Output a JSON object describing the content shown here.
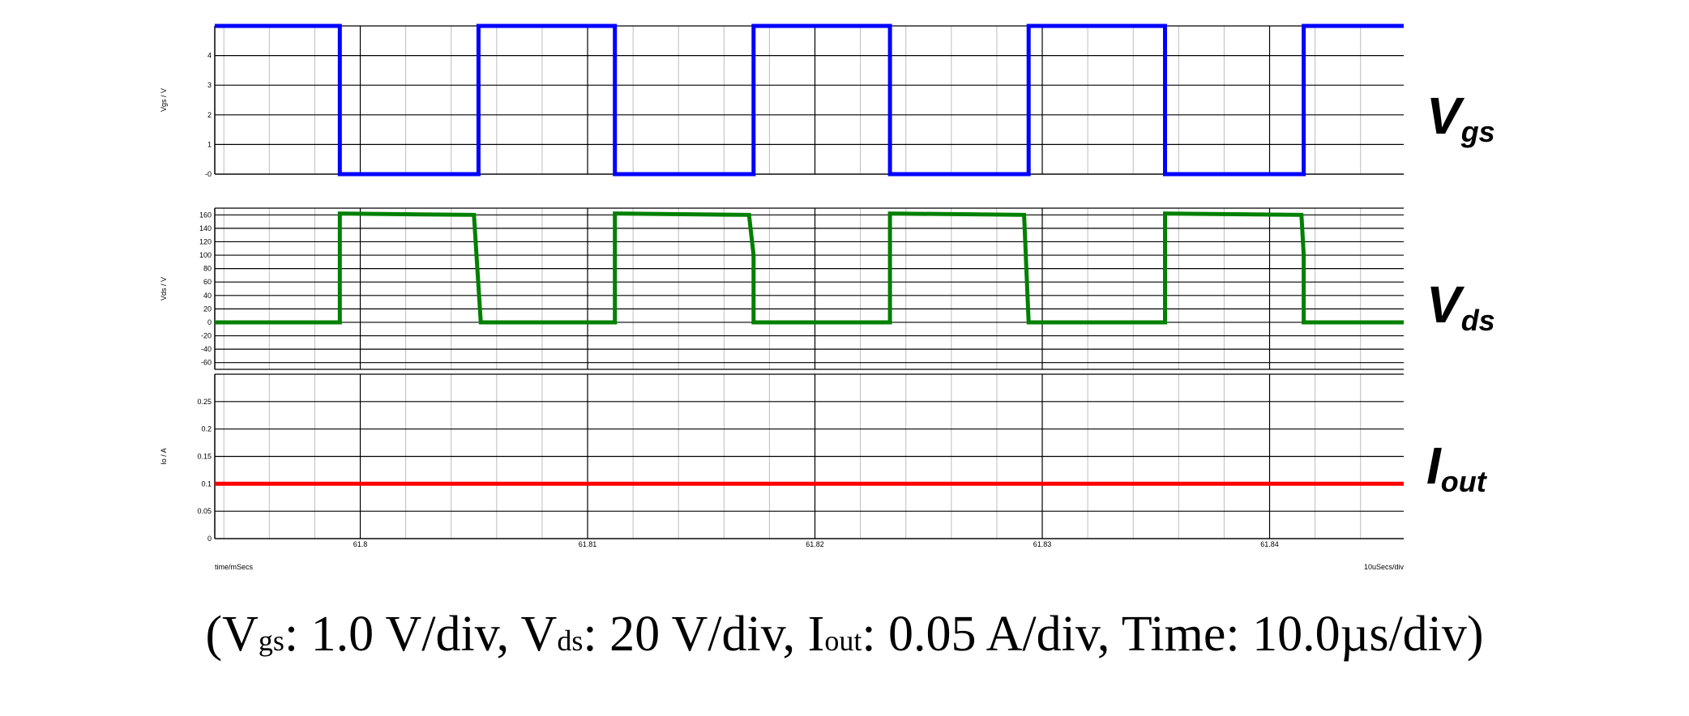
{
  "caption": {
    "open": "(V",
    "vgs_sub": "gs",
    "vgs_text": ": 1.0 V/div, V",
    "vds_sub": "ds",
    "vds_text": ": 20 V/div, I",
    "iout_sub": "out",
    "rest": ": 0.05 A/div, Time: 10.0µs/div)"
  },
  "chart_data": {
    "type": "line",
    "x_unit_label": "time/mSecs",
    "time_per_div_label": "10uSecs/div",
    "xlim": [
      61.7936,
      61.8459
    ],
    "x_ticks": [
      61.8,
      61.81,
      61.82,
      61.83,
      61.84
    ],
    "x_tick_labels": [
      "61.8",
      "61.81",
      "61.82",
      "61.83",
      "61.84"
    ],
    "grid": true,
    "panels": [
      {
        "id": "vgs",
        "ylabel": "Vgs / V",
        "trace_label": {
          "main": "V",
          "sub": "gs"
        },
        "ylim": [
          0,
          5
        ],
        "y_ticks": [
          0,
          1,
          2,
          3,
          4
        ],
        "y_tick_labels": [
          "-0",
          "1",
          "2",
          "3",
          "4"
        ],
        "color": "#0000ff",
        "series": {
          "name": "Vgs",
          "x": [
            61.7936,
            61.7991,
            61.7991,
            61.8052,
            61.8052,
            61.8112,
            61.8112,
            61.8173,
            61.8173,
            61.8233,
            61.8233,
            61.8294,
            61.8294,
            61.8354,
            61.8354,
            61.8415,
            61.8415,
            61.8459
          ],
          "y": [
            5,
            5,
            0,
            0,
            5,
            5,
            0,
            0,
            5,
            5,
            0,
            0,
            5,
            5,
            0,
            0,
            5,
            5
          ]
        }
      },
      {
        "id": "vds",
        "ylabel": "Vds / V",
        "trace_label": {
          "main": "V",
          "sub": "ds"
        },
        "ylim": [
          -70,
          170
        ],
        "y_ticks": [
          -60,
          -40,
          -20,
          0,
          20,
          40,
          60,
          80,
          100,
          120,
          140,
          160
        ],
        "y_tick_labels": [
          "-60",
          "-40",
          "-20",
          "0",
          "20",
          "40",
          "60",
          "80",
          "100",
          "120",
          "140",
          "160"
        ],
        "color": "#008000",
        "series": {
          "name": "Vds",
          "x": [
            61.7936,
            61.7991,
            61.7991,
            61.802,
            61.805,
            61.8053,
            61.8053,
            61.8112,
            61.8112,
            61.8171,
            61.8173,
            61.8173,
            61.8233,
            61.8233,
            61.8292,
            61.8294,
            61.8294,
            61.8354,
            61.8354,
            61.8414,
            61.8415,
            61.8415,
            61.8459
          ],
          "y": [
            0,
            0,
            162,
            161,
            160,
            0,
            0,
            0,
            162,
            160,
            100,
            0,
            0,
            162,
            160,
            0,
            0,
            0,
            162,
            160,
            100,
            0,
            0
          ]
        }
      },
      {
        "id": "iout",
        "ylabel": "Io / A",
        "trace_label": {
          "main": "I",
          "sub": "out"
        },
        "ylim": [
          0,
          0.3
        ],
        "y_ticks": [
          0,
          0.05,
          0.1,
          0.15,
          0.2,
          0.25
        ],
        "y_tick_labels": [
          "0",
          "0.05",
          "0.1",
          "0.15",
          "0.2",
          "0.25"
        ],
        "color": "#ff0000",
        "series": {
          "name": "Io",
          "x": [
            61.7936,
            61.8459
          ],
          "y": [
            0.1,
            0.1
          ]
        }
      }
    ]
  }
}
